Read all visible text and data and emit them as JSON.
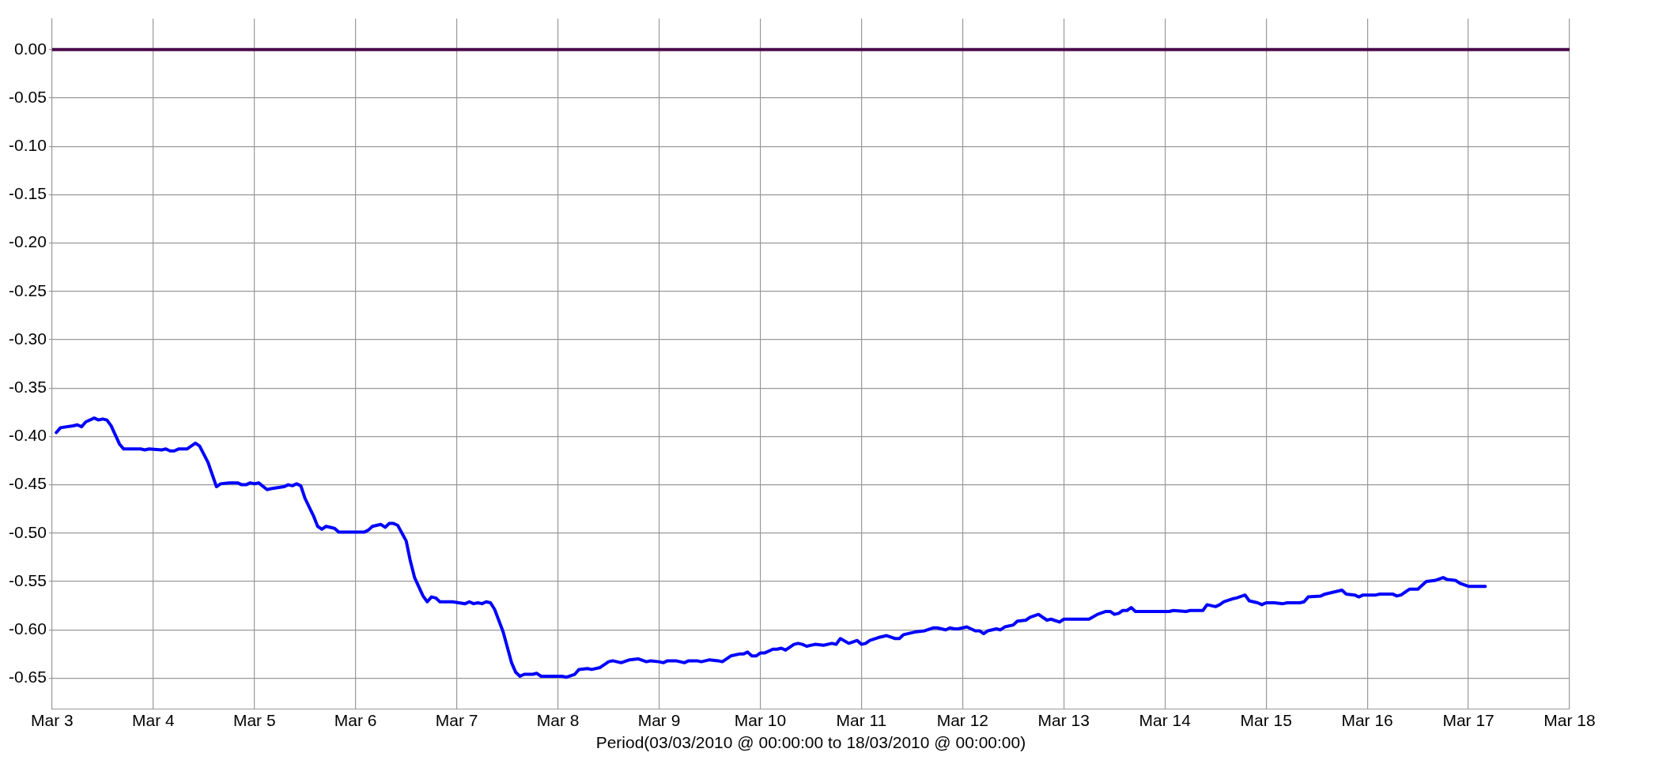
{
  "chart_data": {
    "type": "line",
    "xlabel": "Period(03/03/2010 @ 00:00:00 to 18/03/2010 @ 00:00:00)",
    "xlim": [
      "2010-03-03",
      "2010-03-18"
    ],
    "xticks": [
      {
        "value": "2010-03-03",
        "label": "Mar 3"
      },
      {
        "value": "2010-03-04",
        "label": "Mar 4"
      },
      {
        "value": "2010-03-05",
        "label": "Mar 5"
      },
      {
        "value": "2010-03-06",
        "label": "Mar 6"
      },
      {
        "value": "2010-03-07",
        "label": "Mar 7"
      },
      {
        "value": "2010-03-08",
        "label": "Mar 8"
      },
      {
        "value": "2010-03-09",
        "label": "Mar 9"
      },
      {
        "value": "2010-03-10",
        "label": "Mar 10"
      },
      {
        "value": "2010-03-11",
        "label": "Mar 11"
      },
      {
        "value": "2010-03-12",
        "label": "Mar 12"
      },
      {
        "value": "2010-03-13",
        "label": "Mar 13"
      },
      {
        "value": "2010-03-14",
        "label": "Mar 14"
      },
      {
        "value": "2010-03-15",
        "label": "Mar 15"
      },
      {
        "value": "2010-03-16",
        "label": "Mar 16"
      },
      {
        "value": "2010-03-17",
        "label": "Mar 17"
      },
      {
        "value": "2010-03-18",
        "label": "Mar 18"
      }
    ],
    "ylim": [
      -0.682,
      0.032
    ],
    "yticks": [
      {
        "value": 0,
        "label": "0.00"
      },
      {
        "value": -0.05,
        "label": "-0.05"
      },
      {
        "value": -0.1,
        "label": "-0.10"
      },
      {
        "value": -0.15,
        "label": "-0.15"
      },
      {
        "value": -0.2,
        "label": "-0.20"
      },
      {
        "value": -0.25,
        "label": "-0.25"
      },
      {
        "value": -0.3,
        "label": "-0.30"
      },
      {
        "value": -0.35,
        "label": "-0.35"
      },
      {
        "value": -0.4,
        "label": "-0.40"
      },
      {
        "value": -0.45,
        "label": "-0.45"
      },
      {
        "value": -0.5,
        "label": "-0.50"
      },
      {
        "value": -0.55,
        "label": "-0.55"
      },
      {
        "value": -0.6,
        "label": "-0.60"
      },
      {
        "value": -0.65,
        "label": "-0.65"
      }
    ],
    "grid": true,
    "legend": false,
    "series": [
      {
        "color": "#4a0a4a",
        "x": [
          "2010-03-03",
          "2010-03-18"
        ],
        "values": [
          0,
          0
        ]
      },
      {
        "color": "#0000ff",
        "x": [
          "2010-03-03T01:00",
          "2010-03-03T02:00",
          "2010-03-03T05:00",
          "2010-03-03T06:00",
          "2010-03-03T07:00",
          "2010-03-03T08:00",
          "2010-03-03T10:00",
          "2010-03-03T11:00",
          "2010-03-03T12:00",
          "2010-03-03T13:00",
          "2010-03-03T14:00",
          "2010-03-03T16:00",
          "2010-03-03T17:00",
          "2010-03-03T21:00",
          "2010-03-03T22:00",
          "2010-03-03T23:00",
          "2010-03-04T02:00",
          "2010-03-04T03:00",
          "2010-03-04T04:00",
          "2010-03-04T05:00",
          "2010-03-04T06:00",
          "2010-03-04T08:00",
          "2010-03-04T10:00",
          "2010-03-04T11:00",
          "2010-03-04T13:00",
          "2010-03-04T15:00",
          "2010-03-04T16:00",
          "2010-03-04T18:00",
          "2010-03-04T19:00",
          "2010-03-04T20:00",
          "2010-03-04T21:00",
          "2010-03-04T22:00",
          "2010-03-04T23:00",
          "2010-03-05T00:00",
          "2010-03-05T01:00",
          "2010-03-05T03:00",
          "2010-03-05T04:00",
          "2010-03-05T07:00",
          "2010-03-05T08:00",
          "2010-03-05T09:00",
          "2010-03-05T10:00",
          "2010-03-05T11:00",
          "2010-03-05T12:00",
          "2010-03-05T14:00",
          "2010-03-05T15:00",
          "2010-03-05T16:00",
          "2010-03-05T17:00",
          "2010-03-05T19:00",
          "2010-03-05T20:00",
          "2010-03-06T02:00",
          "2010-03-06T03:00",
          "2010-03-06T04:00",
          "2010-03-06T06:00",
          "2010-03-06T07:00",
          "2010-03-06T08:00",
          "2010-03-06T09:00",
          "2010-03-06T10:00",
          "2010-03-06T12:00",
          "2010-03-06T13:00",
          "2010-03-06T14:00",
          "2010-03-06T16:00",
          "2010-03-06T17:00",
          "2010-03-06T18:00",
          "2010-03-06T19:00",
          "2010-03-06T20:00",
          "2010-03-06T23:00",
          "2010-03-07T02:00",
          "2010-03-07T03:00",
          "2010-03-07T04:00",
          "2010-03-07T05:00",
          "2010-03-07T06:00",
          "2010-03-07T07:00",
          "2010-03-07T08:00",
          "2010-03-07T09:00",
          "2010-03-07T11:00",
          "2010-03-07T13:00",
          "2010-03-07T14:00",
          "2010-03-07T15:00",
          "2010-03-07T16:00",
          "2010-03-07T18:00",
          "2010-03-07T19:00",
          "2010-03-07T20:00",
          "2010-03-08T01:00",
          "2010-03-08T02:00",
          "2010-03-08T04:00",
          "2010-03-08T05:00",
          "2010-03-08T07:00",
          "2010-03-08T08:00",
          "2010-03-08T10:00",
          "2010-03-08T12:00",
          "2010-03-08T13:00",
          "2010-03-08T15:00",
          "2010-03-08T17:00",
          "2010-03-08T19:00",
          "2010-03-08T21:00",
          "2010-03-08T22:00",
          "2010-03-09T00:00",
          "2010-03-09T01:00",
          "2010-03-09T02:00",
          "2010-03-09T04:00",
          "2010-03-09T06:00",
          "2010-03-09T07:00",
          "2010-03-09T09:00",
          "2010-03-09T10:00",
          "2010-03-09T12:00",
          "2010-03-09T14:00",
          "2010-03-09T15:00",
          "2010-03-09T17:00",
          "2010-03-09T19:00",
          "2010-03-09T20:00",
          "2010-03-09T21:00",
          "2010-03-09T22:00",
          "2010-03-09T23:00",
          "2010-03-10T00:00",
          "2010-03-10T01:00",
          "2010-03-10T03:00",
          "2010-03-10T04:00",
          "2010-03-10T05:00",
          "2010-03-10T06:00",
          "2010-03-10T08:00",
          "2010-03-10T09:00",
          "2010-03-10T10:00",
          "2010-03-10T11:00",
          "2010-03-10T13:00",
          "2010-03-10T15:00",
          "2010-03-10T17:00",
          "2010-03-10T18:00",
          "2010-03-10T19:00",
          "2010-03-10T21:00",
          "2010-03-10T23:00",
          "2010-03-11T00:00",
          "2010-03-11T01:00",
          "2010-03-11T02:00",
          "2010-03-11T04:00",
          "2010-03-11T06:00",
          "2010-03-11T08:00",
          "2010-03-11T09:00",
          "2010-03-11T10:00",
          "2010-03-11T13:00",
          "2010-03-11T15:00",
          "2010-03-11T17:00",
          "2010-03-11T18:00",
          "2010-03-11T20:00",
          "2010-03-11T21:00",
          "2010-03-11T22:00",
          "2010-03-11T23:00",
          "2010-03-12T01:00",
          "2010-03-12T03:00",
          "2010-03-12T04:00",
          "2010-03-12T05:00",
          "2010-03-12T06:00",
          "2010-03-12T08:00",
          "2010-03-12T09:00",
          "2010-03-12T10:00",
          "2010-03-12T12:00",
          "2010-03-12T13:00",
          "2010-03-12T15:00",
          "2010-03-12T16:00",
          "2010-03-12T18:00",
          "2010-03-12T20:00",
          "2010-03-12T21:00",
          "2010-03-12T23:00",
          "2010-03-13T00:00",
          "2010-03-13T06:00",
          "2010-03-13T08:00",
          "2010-03-13T10:00",
          "2010-03-13T11:00",
          "2010-03-13T12:00",
          "2010-03-13T13:00",
          "2010-03-13T14:00",
          "2010-03-13T15:00",
          "2010-03-13T16:00",
          "2010-03-13T17:00",
          "2010-03-13T23:00",
          "2010-03-14T01:00",
          "2010-03-14T02:00",
          "2010-03-14T05:00",
          "2010-03-14T06:00",
          "2010-03-14T09:00",
          "2010-03-14T10:00",
          "2010-03-14T12:00",
          "2010-03-14T13:00",
          "2010-03-14T14:00",
          "2010-03-14T16:00",
          "2010-03-14T17:00",
          "2010-03-14T19:00",
          "2010-03-14T20:00",
          "2010-03-14T22:00",
          "2010-03-14T23:00",
          "2010-03-15T00:00",
          "2010-03-15T01:00",
          "2010-03-15T02:00",
          "2010-03-15T04:00",
          "2010-03-15T05:00",
          "2010-03-15T08:00",
          "2010-03-15T09:00",
          "2010-03-15T10:00",
          "2010-03-15T13:00",
          "2010-03-15T14:00",
          "2010-03-15T16:00",
          "2010-03-15T18:00",
          "2010-03-15T19:00",
          "2010-03-15T21:00",
          "2010-03-15T22:00",
          "2010-03-15T23:00",
          "2010-03-16T02:00",
          "2010-03-16T03:00",
          "2010-03-16T06:00",
          "2010-03-16T07:00",
          "2010-03-16T08:00",
          "2010-03-16T10:00",
          "2010-03-16T11:00",
          "2010-03-16T12:00",
          "2010-03-16T14:00",
          "2010-03-16T16:00",
          "2010-03-16T18:00",
          "2010-03-16T19:00",
          "2010-03-16T21:00",
          "2010-03-16T22:00",
          "2010-03-17T00:00",
          "2010-03-17T04:00"
        ],
        "values": [
          -0.396,
          -0.391,
          -0.389,
          -0.388,
          -0.39,
          -0.385,
          -0.381,
          -0.383,
          -0.382,
          -0.383,
          -0.389,
          -0.408,
          -0.413,
          -0.413,
          -0.414,
          -0.413,
          -0.414,
          -0.413,
          -0.415,
          -0.415,
          -0.413,
          -0.413,
          -0.407,
          -0.41,
          -0.427,
          -0.452,
          -0.449,
          -0.448,
          -0.448,
          -0.448,
          -0.45,
          -0.45,
          -0.448,
          -0.449,
          -0.448,
          -0.455,
          -0.454,
          -0.452,
          -0.45,
          -0.451,
          -0.449,
          -0.451,
          -0.464,
          -0.482,
          -0.493,
          -0.496,
          -0.493,
          -0.495,
          -0.499,
          -0.499,
          -0.497,
          -0.493,
          -0.491,
          -0.494,
          -0.49,
          -0.49,
          -0.492,
          -0.508,
          -0.529,
          -0.546,
          -0.565,
          -0.571,
          -0.566,
          -0.567,
          -0.571,
          -0.571,
          -0.573,
          -0.571,
          -0.573,
          -0.572,
          -0.573,
          -0.571,
          -0.572,
          -0.579,
          -0.602,
          -0.634,
          -0.644,
          -0.648,
          -0.646,
          -0.646,
          -0.645,
          -0.648,
          -0.648,
          -0.649,
          -0.646,
          -0.641,
          -0.64,
          -0.641,
          -0.639,
          -0.633,
          -0.632,
          -0.634,
          -0.631,
          -0.63,
          -0.633,
          -0.632,
          -0.633,
          -0.634,
          -0.632,
          -0.632,
          -0.634,
          -0.632,
          -0.632,
          -0.633,
          -0.631,
          -0.632,
          -0.633,
          -0.627,
          -0.625,
          -0.625,
          -0.623,
          -0.627,
          -0.627,
          -0.624,
          -0.624,
          -0.62,
          -0.62,
          -0.619,
          -0.621,
          -0.615,
          -0.614,
          -0.615,
          -0.617,
          -0.615,
          -0.616,
          -0.614,
          -0.615,
          -0.609,
          -0.614,
          -0.611,
          -0.615,
          -0.614,
          -0.611,
          -0.608,
          -0.606,
          -0.609,
          -0.609,
          -0.605,
          -0.602,
          -0.601,
          -0.598,
          -0.598,
          -0.6,
          -0.598,
          -0.599,
          -0.599,
          -0.597,
          -0.601,
          -0.601,
          -0.604,
          -0.601,
          -0.599,
          -0.6,
          -0.597,
          -0.595,
          -0.591,
          -0.59,
          -0.587,
          -0.584,
          -0.59,
          -0.589,
          -0.592,
          -0.589,
          -0.589,
          -0.584,
          -0.581,
          -0.581,
          -0.584,
          -0.583,
          -0.58,
          -0.58,
          -0.577,
          -0.581,
          -0.581,
          -0.581,
          -0.58,
          -0.581,
          -0.58,
          -0.58,
          -0.574,
          -0.576,
          -0.574,
          -0.571,
          -0.568,
          -0.567,
          -0.564,
          -0.57,
          -0.572,
          -0.574,
          -0.572,
          -0.572,
          -0.572,
          -0.573,
          -0.572,
          -0.572,
          -0.571,
          -0.566,
          -0.565,
          -0.563,
          -0.561,
          -0.559,
          -0.563,
          -0.564,
          -0.566,
          -0.564,
          -0.564,
          -0.563,
          -0.563,
          -0.565,
          -0.564,
          -0.558,
          -0.558,
          -0.558,
          -0.55,
          -0.549,
          -0.546,
          -0.548,
          -0.549,
          -0.552,
          -0.555,
          -0.555
        ]
      }
    ]
  }
}
